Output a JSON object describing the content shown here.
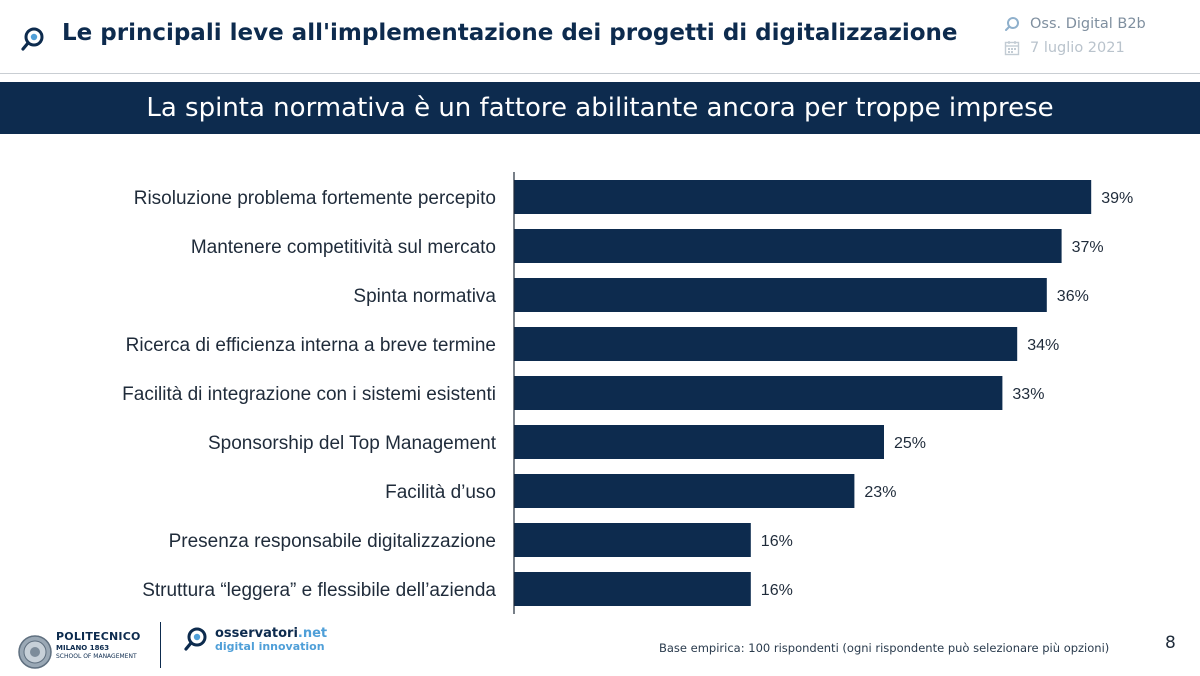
{
  "header": {
    "title": "Le principali leve all'implementazione dei progetti di digitalizzazione",
    "source": "Oss. Digital B2b",
    "date": "7 luglio 2021",
    "icons": [
      "magnifier-logo-icon",
      "calendar-icon"
    ]
  },
  "banner": {
    "text": "La spinta normativa è un fattore abilitante ancora per troppe imprese"
  },
  "colors": {
    "navy": "#0d2b4e",
    "accent_blue": "#4f9fd8",
    "grey": "#7f8f9f"
  },
  "chart_data": {
    "type": "bar",
    "orientation": "horizontal",
    "categories": [
      "Risoluzione problema fortemente percepito",
      "Mantenere competitività sul mercato",
      "Spinta normativa",
      "Ricerca di efficienza interna a breve termine",
      "Facilità di integrazione con i sistemi esistenti",
      "Sponsorship del Top Management",
      "Facilità d’uso",
      "Presenza responsabile digitalizzazione",
      "Struttura “leggera” e flessibile dell’azienda"
    ],
    "values": [
      39,
      37,
      36,
      34,
      33,
      25,
      23,
      16,
      16
    ],
    "value_labels": [
      "39%",
      "37%",
      "36%",
      "34%",
      "33%",
      "25%",
      "23%",
      "16%",
      "16%"
    ],
    "unit": "%",
    "bar_color": "#0d2b4e",
    "grid": false
  },
  "footer": {
    "polimi_line1": "POLITECNICO",
    "polimi_line2": "MILANO 1863",
    "polimi_line3": "SCHOOL OF MANAGEMENT",
    "oss_name": "osservatori",
    "oss_tld": ".net",
    "oss_tagline": "digital innovation",
    "note": "Base empirica: 100 rispondenti (ogni rispondente può selezionare più opzioni)",
    "page_number": "8"
  }
}
